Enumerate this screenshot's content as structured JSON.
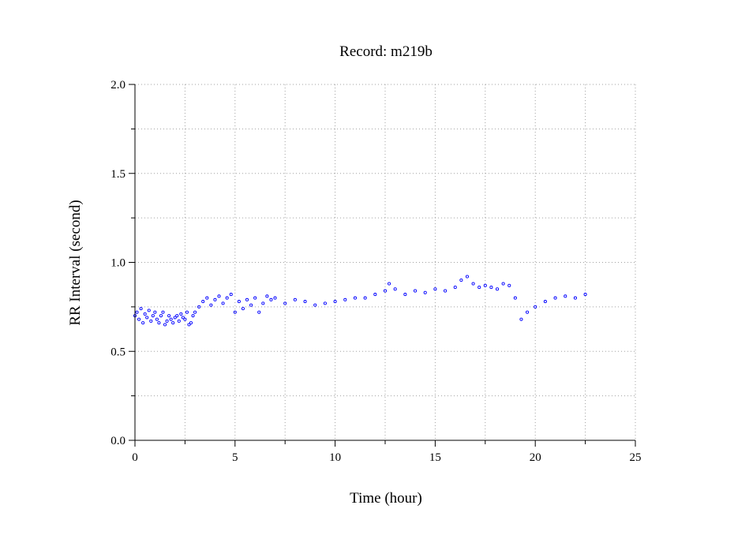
{
  "chart_data": {
    "type": "scatter",
    "title": "Record:  m219b",
    "xlabel": "Time (hour)",
    "ylabel": "RR Interval (second)",
    "xlim": [
      0,
      25
    ],
    "ylim": [
      0.0,
      2.0
    ],
    "xticks": [
      0,
      5,
      10,
      15,
      20,
      25
    ],
    "xtick_labels": [
      "0",
      "5",
      "10",
      "15",
      "20",
      "25"
    ],
    "yticks": [
      0.0,
      0.5,
      1.0,
      1.5,
      2.0
    ],
    "ytick_labels": [
      "0.0",
      "0.5",
      "1.0",
      "1.5",
      "2.0"
    ],
    "grid": true,
    "marker_color": "#0000ff",
    "series": [
      {
        "values_x_hour": [
          0.0,
          0.1,
          0.2,
          0.3,
          0.4,
          0.5,
          0.6,
          0.7,
          0.8,
          0.9,
          1.0,
          1.1,
          1.2,
          1.3,
          1.4,
          1.5,
          1.6,
          1.7,
          1.8,
          1.9,
          2.0,
          2.1,
          2.2,
          2.3,
          2.4,
          2.5,
          2.6,
          2.7,
          2.8,
          2.9,
          3.0,
          3.2,
          3.4,
          3.6,
          3.8,
          4.0,
          4.2,
          4.4,
          4.6,
          4.8,
          5.0,
          5.2,
          5.4,
          5.6,
          5.8,
          6.0,
          6.2,
          6.4,
          6.6,
          6.8,
          7.0,
          7.5,
          8.0,
          8.5,
          9.0,
          9.5,
          10.0,
          10.5,
          11.0,
          11.5,
          12.0,
          12.5,
          12.7,
          13.0,
          13.5,
          14.0,
          14.5,
          15.0,
          15.5,
          16.0,
          16.3,
          16.6,
          16.9,
          17.2,
          17.5,
          17.8,
          18.1,
          18.4,
          18.7,
          19.0,
          19.3,
          19.6,
          20.0,
          20.5,
          21.0,
          21.5,
          22.0,
          22.5
        ],
        "values_y_second": [
          0.7,
          0.72,
          0.68,
          0.74,
          0.66,
          0.71,
          0.69,
          0.73,
          0.67,
          0.7,
          0.72,
          0.68,
          0.66,
          0.7,
          0.72,
          0.65,
          0.67,
          0.7,
          0.68,
          0.66,
          0.69,
          0.7,
          0.67,
          0.71,
          0.69,
          0.68,
          0.72,
          0.65,
          0.66,
          0.7,
          0.72,
          0.75,
          0.78,
          0.8,
          0.76,
          0.79,
          0.81,
          0.77,
          0.8,
          0.82,
          0.72,
          0.78,
          0.74,
          0.79,
          0.76,
          0.8,
          0.72,
          0.77,
          0.81,
          0.79,
          0.8,
          0.77,
          0.79,
          0.78,
          0.76,
          0.77,
          0.78,
          0.79,
          0.8,
          0.8,
          0.82,
          0.84,
          0.88,
          0.85,
          0.82,
          0.84,
          0.83,
          0.85,
          0.84,
          0.86,
          0.9,
          0.92,
          0.88,
          0.86,
          0.87,
          0.86,
          0.85,
          0.88,
          0.87,
          0.8,
          0.68,
          0.72,
          0.75,
          0.78,
          0.8,
          0.81,
          0.8,
          0.82
        ]
      }
    ]
  }
}
